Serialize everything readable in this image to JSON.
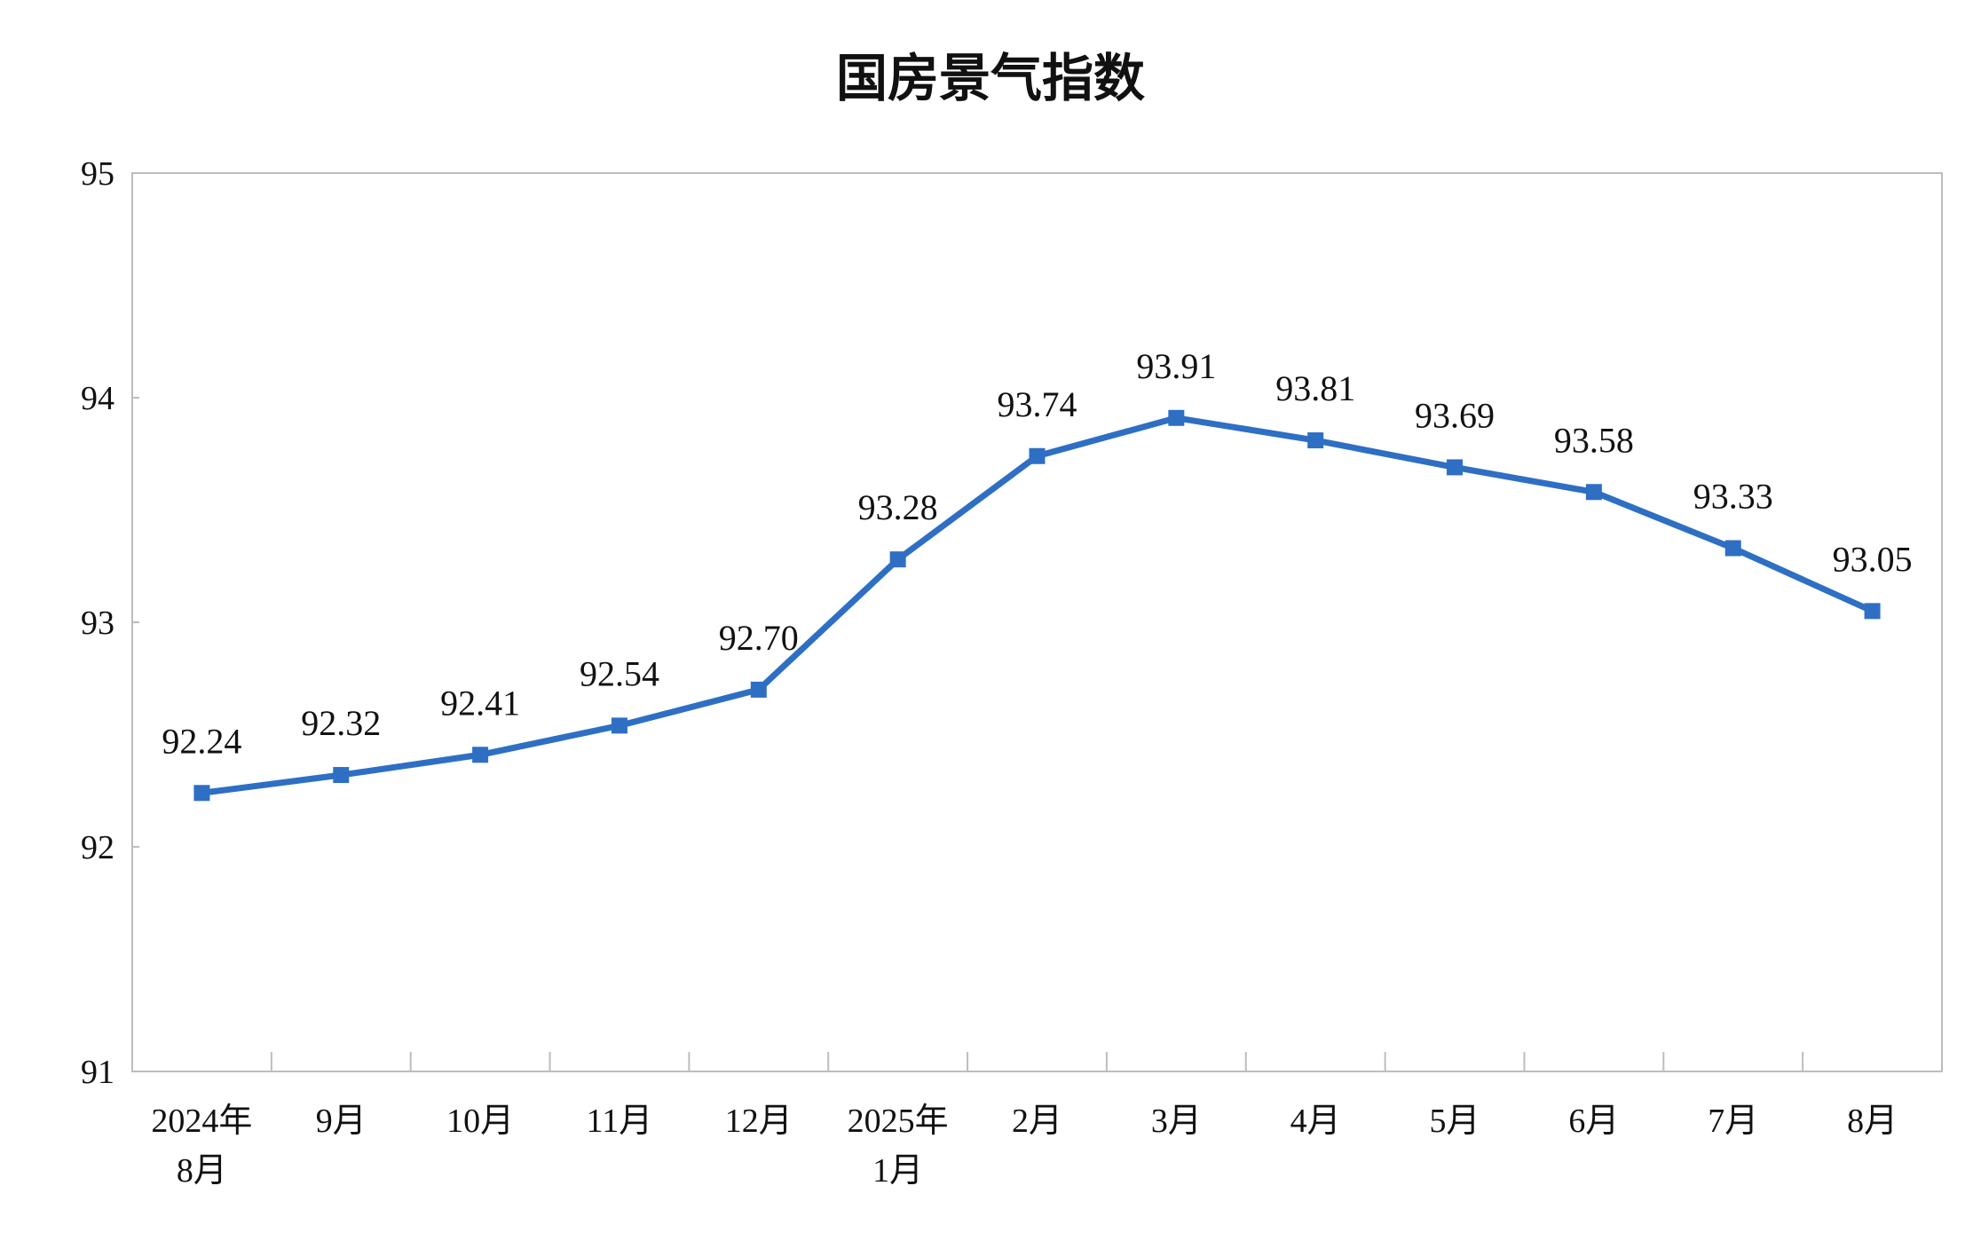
{
  "chart_data": {
    "type": "line",
    "title": "国房景气指数",
    "categories": [
      [
        "2024年",
        "8月"
      ],
      [
        "9月"
      ],
      [
        "10月"
      ],
      [
        "11月"
      ],
      [
        "12月"
      ],
      [
        "2025年",
        "1月"
      ],
      [
        "2月"
      ],
      [
        "3月"
      ],
      [
        "4月"
      ],
      [
        "5月"
      ],
      [
        "6月"
      ],
      [
        "7月"
      ],
      [
        "8月"
      ]
    ],
    "series": [
      {
        "values": [
          92.24,
          92.32,
          92.41,
          92.54,
          92.7,
          93.28,
          93.74,
          93.91,
          93.81,
          93.69,
          93.58,
          93.33,
          93.05
        ],
        "labels": [
          "92.24",
          "92.32",
          "92.41",
          "92.54",
          "92.70",
          "93.28",
          "93.74",
          "93.91",
          "93.81",
          "93.69",
          "93.58",
          "93.33",
          "93.05"
        ],
        "color": "#2e6fc4",
        "marker": "square"
      }
    ],
    "ylim": [
      91,
      95
    ],
    "yticks": [
      "91",
      "92",
      "93",
      "94",
      "95"
    ],
    "xlabel": "",
    "ylabel": "",
    "grid": false,
    "legend": "none"
  }
}
